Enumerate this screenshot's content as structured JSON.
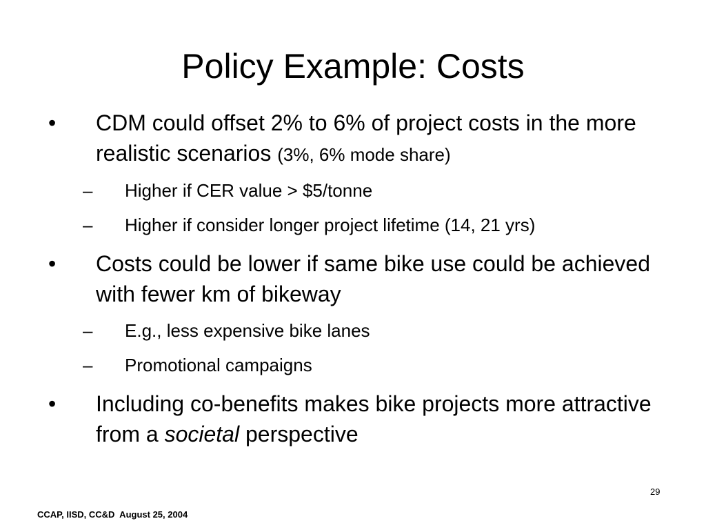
{
  "slide": {
    "title": "Policy Example: Costs",
    "bullet_marker": "•",
    "sub_marker": "–",
    "bullets": [
      {
        "text": "CDM could offset 2% to 6% of project costs in the more realistic scenarios",
        "small_note": "(3%, 6% mode share)",
        "subs": [
          "Higher if CER value > $5/tonne",
          "Higher if consider longer project lifetime (14, 21 yrs)"
        ]
      },
      {
        "text": "Costs could be lower if same bike use could be achieved with fewer km of bikeway",
        "subs": [
          "E.g., less expensive bike lanes",
          "Promotional campaigns"
        ]
      },
      {
        "text_before": "Including co-benefits makes bike projects more attractive from a",
        "text_italic": "societal",
        "text_after": "perspective"
      }
    ],
    "page_number": "29",
    "footer": "CCAP, IISD, CC&D  August 25, 2004"
  }
}
